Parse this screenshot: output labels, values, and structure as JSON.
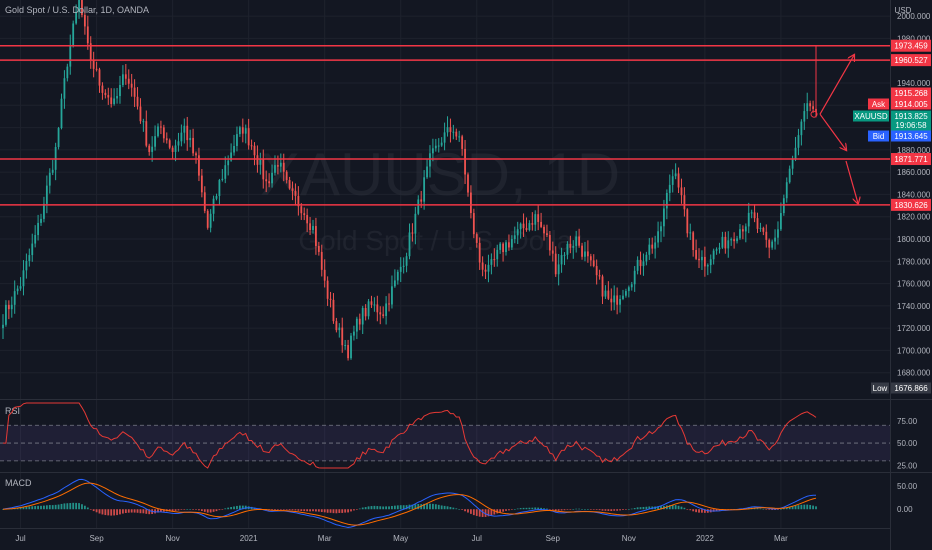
{
  "header": {
    "title": "Gold Spot / U.S. Dollar, 1D, OANDA",
    "currency": "USD"
  },
  "watermark": {
    "line1": "XAUUSD, 1D",
    "line2": "Gold Spot / U.S. Dollar"
  },
  "colors": {
    "background": "#131722",
    "up": "#26a69a",
    "down": "#ef5350",
    "level_line": "#f23645",
    "rsi_line": "#e53935",
    "macd_line": "#2962ff",
    "signal_line": "#ff6d00",
    "ask_badge": "#f23645",
    "symbol_badge": "#089981",
    "bid_badge": "#2962ff",
    "low_badge": "#363a45"
  },
  "chart_data": [
    {
      "type": "candlestick",
      "title": "Gold Spot / U.S. Dollar, 1D, OANDA",
      "ylabel": "USD",
      "ylim": [
        1660,
        2010
      ],
      "x_ticks": [
        "Jul",
        "Sep",
        "Nov",
        "2021",
        "Mar",
        "May",
        "Jul",
        "Sep",
        "Nov",
        "2022",
        "Mar"
      ],
      "y_ticks": [
        1680,
        1700,
        1720,
        1740,
        1760,
        1780,
        1800,
        1820,
        1840,
        1860,
        1880,
        1900,
        1920,
        1940,
        1960,
        1980,
        2000
      ],
      "y_tick_labels": [
        "1680.000",
        "1700.000",
        "1720.000",
        "1740.000",
        "1760.000",
        "1780.000",
        "1800.000",
        "1820.000",
        "1840.000",
        "1860.000",
        "1880.000",
        "1900.000",
        "1920.000",
        "1940.000",
        "1960.000",
        "1980.000",
        "2000.000"
      ],
      "levels": [
        {
          "value": 1973.459,
          "label": "1973.459"
        },
        {
          "value": 1960.527,
          "label": "1960.527"
        },
        {
          "value": 1871.771,
          "label": "1871.771"
        },
        {
          "value": 1830.626,
          "label": "1830.626"
        }
      ],
      "price_tags": [
        {
          "name": "high",
          "value": 1915.268,
          "label": "1915.268"
        },
        {
          "name": "ask",
          "caption": "Ask",
          "value": 1914.005,
          "label": "1914.005"
        },
        {
          "name": "symbol",
          "caption": "XAUUSD",
          "value": 1913.825,
          "label": "1913.825",
          "countdown": "19:06:58"
        },
        {
          "name": "bid",
          "caption": "Bid",
          "value": 1913.645,
          "label": "1913.645"
        }
      ],
      "low": {
        "caption": "Low",
        "value": 1676.866,
        "label": "1676.866"
      },
      "projections": [
        {
          "from": 1912,
          "to": 1965,
          "direction": "up"
        },
        {
          "from": 1912,
          "to": 1880,
          "direction": "down"
        },
        {
          "from": 1870,
          "to": 1832,
          "direction": "down"
        }
      ],
      "anchors": [
        [
          0,
          1730
        ],
        [
          6,
          1760
        ],
        [
          12,
          1810
        ],
        [
          18,
          1880
        ],
        [
          22,
          1960
        ],
        [
          26,
          2015
        ],
        [
          29,
          1970
        ],
        [
          33,
          1940
        ],
        [
          38,
          1920
        ],
        [
          42,
          1950
        ],
        [
          46,
          1920
        ],
        [
          50,
          1880
        ],
        [
          54,
          1900
        ],
        [
          58,
          1880
        ],
        [
          62,
          1900
        ],
        [
          66,
          1870
        ],
        [
          70,
          1810
        ],
        [
          74,
          1850
        ],
        [
          78,
          1880
        ],
        [
          82,
          1900
        ],
        [
          86,
          1880
        ],
        [
          90,
          1850
        ],
        [
          94,
          1870
        ],
        [
          98,
          1840
        ],
        [
          102,
          1830
        ],
        [
          106,
          1810
        ],
        [
          110,
          1760
        ],
        [
          114,
          1720
        ],
        [
          118,
          1700
        ],
        [
          122,
          1730
        ],
        [
          126,
          1740
        ],
        [
          130,
          1735
        ],
        [
          134,
          1760
        ],
        [
          138,
          1790
        ],
        [
          142,
          1830
        ],
        [
          146,
          1870
        ],
        [
          150,
          1890
        ],
        [
          154,
          1900
        ],
        [
          157,
          1880
        ],
        [
          160,
          1820
        ],
        [
          163,
          1780
        ],
        [
          166,
          1770
        ],
        [
          170,
          1790
        ],
        [
          174,
          1800
        ],
        [
          178,
          1810
        ],
        [
          182,
          1820
        ],
        [
          186,
          1800
        ],
        [
          189,
          1775
        ],
        [
          192,
          1790
        ],
        [
          196,
          1800
        ],
        [
          200,
          1780
        ],
        [
          204,
          1760
        ],
        [
          208,
          1740
        ],
        [
          212,
          1755
        ],
        [
          216,
          1770
        ],
        [
          220,
          1790
        ],
        [
          224,
          1800
        ],
        [
          228,
          1850
        ],
        [
          230,
          1865
        ],
        [
          233,
          1820
        ],
        [
          236,
          1790
        ],
        [
          240,
          1780
        ],
        [
          244,
          1790
        ],
        [
          248,
          1800
        ],
        [
          252,
          1810
        ],
        [
          256,
          1820
        ],
        [
          260,
          1800
        ],
        [
          262,
          1790
        ],
        [
          265,
          1810
        ],
        [
          268,
          1850
        ],
        [
          271,
          1880
        ],
        [
          274,
          1910
        ],
        [
          276,
          1920
        ],
        [
          278,
          1913.8
        ]
      ]
    },
    {
      "type": "line",
      "title": "RSI",
      "ylim": [
        22,
        95
      ],
      "y_ticks": [
        75,
        50,
        25
      ],
      "y_tick_labels": [
        "75.00",
        "50.00",
        "25.00"
      ],
      "bands": [
        30,
        50,
        70
      ]
    },
    {
      "type": "line",
      "title": "MACD",
      "ylim": [
        -32,
        72
      ],
      "y_ticks": [
        50,
        0
      ],
      "y_tick_labels": [
        "50.00",
        "0.00"
      ]
    }
  ]
}
